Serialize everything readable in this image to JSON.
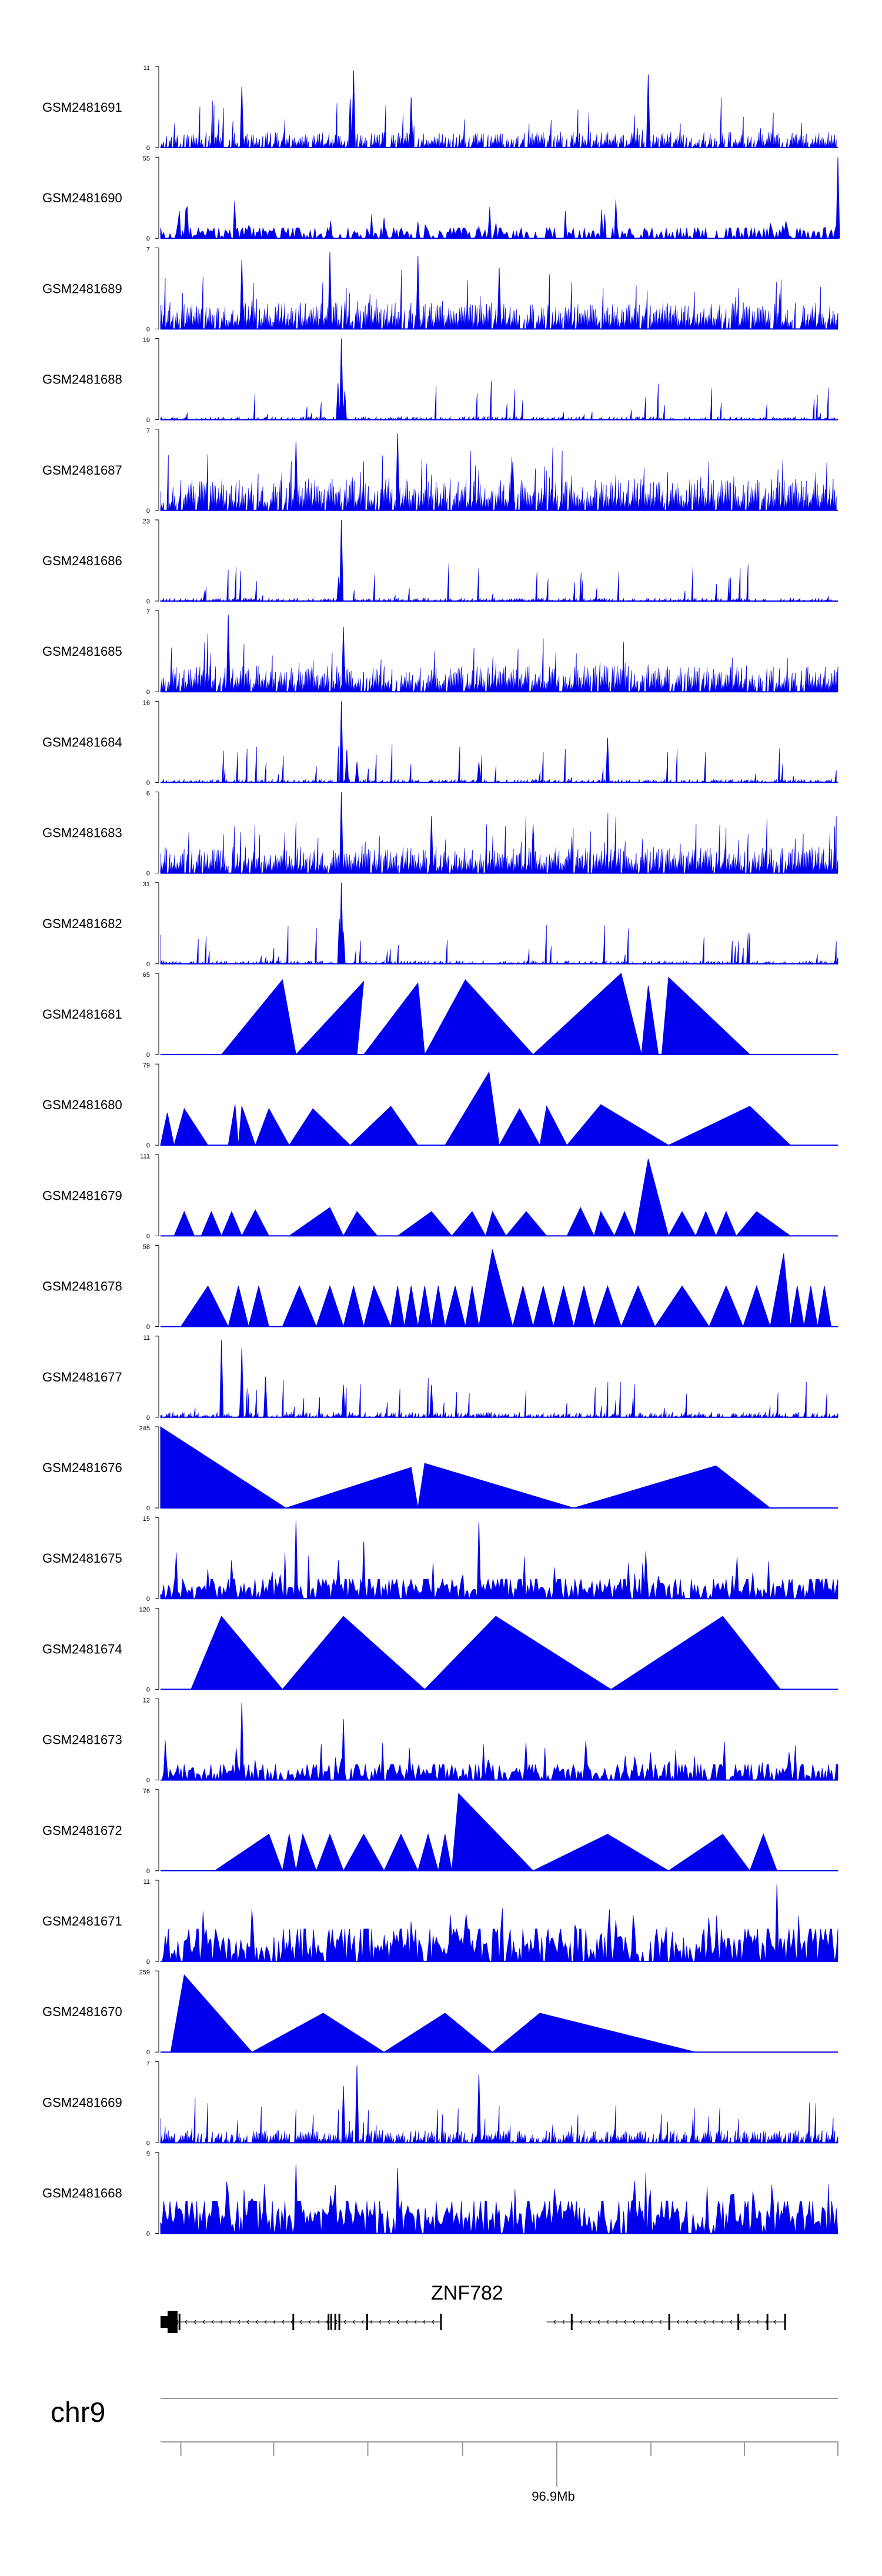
{
  "browser": {
    "chromosome": "chr9",
    "gene": {
      "name": "ZNF782",
      "strand": "-",
      "exons_group1": [
        0.0,
        0.028,
        0.196,
        0.248,
        0.252,
        0.258,
        0.264,
        0.305,
        0.414
      ],
      "exons_group2": [
        0.607,
        0.751,
        0.853,
        0.896,
        0.922
      ],
      "segments": [
        [
          0.0,
          0.414
        ],
        [
          0.57,
          0.922
        ]
      ]
    },
    "axis": {
      "major_tick_label": "96.9Mb",
      "major_tick_position": 0.585,
      "minor_ticks": [
        0.03,
        0.167,
        0.306,
        0.446,
        0.585,
        0.724,
        0.862,
        1.0
      ]
    }
  },
  "colors": {
    "signal": "#0000ee",
    "axis": "#000000",
    "ruler": "#9a9a9a"
  },
  "chart_data": {
    "type": "area",
    "x_axis": {
      "label": "96.9Mb",
      "domain": [
        0,
        1
      ]
    },
    "tracks": [
      {
        "name": "GSM2481691",
        "ymax": 11,
        "ymin": 0,
        "style": "dense",
        "seed": 11,
        "fill": 0.8,
        "base": 0.15,
        "peaks": [
          [
            0.12,
            0.75
          ],
          [
            0.285,
            0.95
          ],
          [
            0.28,
            0.6
          ],
          [
            0.37,
            0.62
          ],
          [
            0.72,
            0.9
          ]
        ]
      },
      {
        "name": "GSM2481690",
        "ymax": 55,
        "ymin": 0,
        "style": "dense-tri",
        "seed": 12,
        "fill": 0.5,
        "base": 0.08,
        "peaks": [
          [
            0.33,
            0.25
          ],
          [
            0.38,
            0.2
          ],
          [
            0.47,
            0.15
          ],
          [
            1.0,
            1.0
          ]
        ]
      },
      {
        "name": "GSM2481689",
        "ymax": 7,
        "ymin": 0,
        "style": "dense",
        "seed": 13,
        "fill": 0.9,
        "base": 0.25,
        "peaks": [
          [
            0.12,
            0.85
          ],
          [
            0.25,
            0.95
          ],
          [
            0.38,
            0.9
          ],
          [
            0.5,
            0.75
          ]
        ]
      },
      {
        "name": "GSM2481688",
        "ymax": 19,
        "ymin": 0,
        "style": "dense",
        "seed": 14,
        "fill": 0.6,
        "base": 0.03,
        "peaks": [
          [
            0.267,
            1.0
          ],
          [
            0.262,
            0.45
          ],
          [
            0.272,
            0.35
          ]
        ]
      },
      {
        "name": "GSM2481687",
        "ymax": 7,
        "ymin": 0,
        "style": "dense",
        "seed": 15,
        "fill": 0.9,
        "base": 0.3,
        "peaks": [
          [
            0.2,
            0.85
          ],
          [
            0.35,
            0.95
          ],
          [
            0.52,
            0.6
          ]
        ]
      },
      {
        "name": "GSM2481686",
        "ymax": 23,
        "ymin": 0,
        "style": "dense",
        "seed": 16,
        "fill": 0.6,
        "base": 0.03,
        "peaks": [
          [
            0.267,
            1.0
          ],
          [
            0.263,
            0.3
          ]
        ]
      },
      {
        "name": "GSM2481685",
        "ymax": 7,
        "ymin": 0,
        "style": "dense",
        "seed": 17,
        "fill": 0.9,
        "base": 0.25,
        "peaks": [
          [
            0.1,
            0.95
          ],
          [
            0.27,
            0.8
          ]
        ]
      },
      {
        "name": "GSM2481684",
        "ymax": 16,
        "ymin": 0,
        "style": "dense",
        "seed": 18,
        "fill": 0.65,
        "base": 0.03,
        "peaks": [
          [
            0.267,
            1.0
          ],
          [
            0.275,
            0.4
          ],
          [
            0.29,
            0.25
          ],
          [
            0.47,
            0.25
          ],
          [
            0.66,
            0.55
          ]
        ]
      },
      {
        "name": "GSM2481683",
        "ymax": 6,
        "ymin": 0,
        "style": "dense",
        "seed": 19,
        "fill": 0.9,
        "base": 0.25,
        "peaks": [
          [
            0.267,
            1.0
          ],
          [
            0.4,
            0.7
          ],
          [
            0.55,
            0.6
          ]
        ]
      },
      {
        "name": "GSM2481682",
        "ymax": 31,
        "ymin": 0,
        "style": "dense",
        "seed": 20,
        "fill": 0.6,
        "base": 0.03,
        "peaks": [
          [
            0.267,
            1.0
          ],
          [
            0.264,
            0.55
          ],
          [
            0.27,
            0.4
          ]
        ]
      },
      {
        "name": "GSM2481681",
        "ymax": 65,
        "ymin": 0,
        "style": "tri",
        "peaks": [
          [
            0.09,
            0.2,
            0.18
          ],
          [
            0.2,
            0.29,
            0.3
          ],
          [
            0.3,
            0.39,
            0.38
          ],
          [
            0.39,
            0.55,
            0.45
          ],
          [
            0.55,
            0.71,
            0.68
          ],
          [
            0.71,
            0.735,
            0.72
          ],
          [
            0.74,
            0.87,
            0.75
          ]
        ],
        "heights": [
          0.92,
          0.9,
          0.88,
          0.92,
          1.0,
          0.85,
          0.95
        ]
      },
      {
        "name": "GSM2481680",
        "ymax": 79,
        "ymin": 0,
        "style": "tri",
        "peaks": [
          [
            0.0,
            0.02,
            0.01
          ],
          [
            0.02,
            0.07,
            0.035
          ],
          [
            0.1,
            0.115,
            0.11
          ],
          [
            0.115,
            0.14,
            0.12
          ],
          [
            0.14,
            0.19,
            0.16
          ],
          [
            0.19,
            0.28,
            0.225
          ],
          [
            0.28,
            0.38,
            0.34
          ],
          [
            0.42,
            0.5,
            0.485
          ],
          [
            0.5,
            0.56,
            0.53
          ],
          [
            0.56,
            0.6,
            0.57
          ],
          [
            0.6,
            0.75,
            0.65
          ],
          [
            0.75,
            0.93,
            0.87
          ]
        ],
        "heights": [
          0.4,
          0.45,
          0.5,
          0.48,
          0.45,
          0.45,
          0.48,
          0.9,
          0.45,
          0.48,
          0.5,
          0.48
        ]
      },
      {
        "name": "GSM2481679",
        "ymax": 111,
        "ymin": 0,
        "style": "tri",
        "peaks": [
          [
            0.02,
            0.05,
            0.035
          ],
          [
            0.06,
            0.09,
            0.075
          ],
          [
            0.09,
            0.12,
            0.105
          ],
          [
            0.12,
            0.16,
            0.14
          ],
          [
            0.19,
            0.27,
            0.25
          ],
          [
            0.27,
            0.32,
            0.29
          ],
          [
            0.35,
            0.43,
            0.4
          ],
          [
            0.43,
            0.48,
            0.46
          ],
          [
            0.48,
            0.51,
            0.49
          ],
          [
            0.51,
            0.57,
            0.54
          ],
          [
            0.6,
            0.64,
            0.62
          ],
          [
            0.64,
            0.67,
            0.65
          ],
          [
            0.67,
            0.7,
            0.685
          ],
          [
            0.7,
            0.75,
            0.72
          ],
          [
            0.75,
            0.79,
            0.77
          ],
          [
            0.79,
            0.82,
            0.805
          ],
          [
            0.82,
            0.85,
            0.835
          ],
          [
            0.85,
            0.93,
            0.88
          ]
        ],
        "heights": [
          0.3,
          0.3,
          0.3,
          0.32,
          0.35,
          0.3,
          0.3,
          0.3,
          0.3,
          0.3,
          0.35,
          0.3,
          0.3,
          0.95,
          0.3,
          0.3,
          0.3,
          0.3
        ]
      },
      {
        "name": "GSM2481678",
        "ymax": 58,
        "ymin": 0,
        "style": "tri",
        "peaks": [
          [
            0.03,
            0.1,
            0.07
          ],
          [
            0.1,
            0.13,
            0.115
          ],
          [
            0.13,
            0.16,
            0.145
          ],
          [
            0.18,
            0.23,
            0.205
          ],
          [
            0.23,
            0.27,
            0.25
          ],
          [
            0.27,
            0.3,
            0.285
          ],
          [
            0.3,
            0.34,
            0.315
          ],
          [
            0.34,
            0.36,
            0.35
          ],
          [
            0.36,
            0.38,
            0.37
          ],
          [
            0.38,
            0.4,
            0.39
          ],
          [
            0.4,
            0.42,
            0.41
          ],
          [
            0.42,
            0.45,
            0.435
          ],
          [
            0.45,
            0.47,
            0.46
          ],
          [
            0.47,
            0.52,
            0.49
          ],
          [
            0.52,
            0.55,
            0.535
          ],
          [
            0.55,
            0.58,
            0.565
          ],
          [
            0.58,
            0.61,
            0.595
          ],
          [
            0.61,
            0.64,
            0.625
          ],
          [
            0.64,
            0.68,
            0.66
          ],
          [
            0.68,
            0.73,
            0.705
          ],
          [
            0.73,
            0.81,
            0.77
          ],
          [
            0.81,
            0.86,
            0.835
          ],
          [
            0.86,
            0.9,
            0.88
          ],
          [
            0.9,
            0.93,
            0.92
          ],
          [
            0.93,
            0.95,
            0.94
          ],
          [
            0.95,
            0.97,
            0.96
          ],
          [
            0.97,
            0.99,
            0.98
          ]
        ],
        "heights": [
          0.5,
          0.5,
          0.5,
          0.5,
          0.5,
          0.5,
          0.5,
          0.5,
          0.5,
          0.5,
          0.5,
          0.5,
          0.5,
          0.95,
          0.5,
          0.5,
          0.5,
          0.5,
          0.5,
          0.5,
          0.5,
          0.5,
          0.5,
          0.9,
          0.5,
          0.5,
          0.5
        ]
      },
      {
        "name": "GSM2481677",
        "ymax": 11,
        "ymin": 0,
        "style": "dense",
        "seed": 21,
        "fill": 0.7,
        "base": 0.05,
        "peaks": [
          [
            0.09,
            0.95
          ],
          [
            0.12,
            0.85
          ],
          [
            0.155,
            0.5
          ],
          [
            0.27,
            0.4
          ],
          [
            0.4,
            0.4
          ]
        ]
      },
      {
        "name": "GSM2481676",
        "ymax": 245,
        "ymin": 0,
        "style": "tri",
        "peaks": [
          [
            0.0,
            0.185,
            0.0
          ],
          [
            0.185,
            0.38,
            0.37
          ],
          [
            0.38,
            0.61,
            0.39
          ],
          [
            0.61,
            0.9,
            0.82
          ]
        ],
        "heights": [
          1.0,
          0.5,
          0.55,
          0.52
        ]
      },
      {
        "name": "GSM2481675",
        "ymax": 15,
        "ymin": 0,
        "style": "dense-tri",
        "seed": 22,
        "fill": 0.8,
        "base": 0.15,
        "peaks": [
          [
            0.2,
            0.95
          ],
          [
            0.47,
            0.95
          ],
          [
            0.3,
            0.7
          ]
        ]
      },
      {
        "name": "GSM2481674",
        "ymax": 120,
        "ymin": 0,
        "style": "tri",
        "peaks": [
          [
            0.045,
            0.18,
            0.09
          ],
          [
            0.18,
            0.39,
            0.27
          ],
          [
            0.39,
            0.665,
            0.495
          ],
          [
            0.665,
            0.915,
            0.83
          ]
        ],
        "heights": [
          0.9,
          0.9,
          0.9,
          0.9
        ]
      },
      {
        "name": "GSM2481673",
        "ymax": 12,
        "ymin": 0,
        "style": "dense-tri",
        "seed": 23,
        "fill": 0.65,
        "base": 0.12,
        "peaks": [
          [
            0.12,
            0.95
          ],
          [
            0.27,
            0.75
          ]
        ]
      },
      {
        "name": "GSM2481672",
        "ymax": 76,
        "ymin": 0,
        "style": "tri",
        "peaks": [
          [
            0.08,
            0.18,
            0.16
          ],
          [
            0.18,
            0.2,
            0.19
          ],
          [
            0.2,
            0.23,
            0.21
          ],
          [
            0.23,
            0.27,
            0.25
          ],
          [
            0.27,
            0.33,
            0.3
          ],
          [
            0.33,
            0.38,
            0.355
          ],
          [
            0.38,
            0.41,
            0.395
          ],
          [
            0.41,
            0.43,
            0.42
          ],
          [
            0.43,
            0.55,
            0.44
          ],
          [
            0.55,
            0.75,
            0.66
          ],
          [
            0.75,
            0.87,
            0.83
          ],
          [
            0.87,
            0.91,
            0.89
          ]
        ],
        "heights": [
          0.45,
          0.45,
          0.45,
          0.45,
          0.45,
          0.45,
          0.45,
          0.45,
          0.95,
          0.45,
          0.45,
          0.45
        ]
      },
      {
        "name": "GSM2481671",
        "ymax": 11,
        "ymin": 0,
        "style": "dense-tri",
        "seed": 24,
        "fill": 0.75,
        "base": 0.25,
        "peaks": [
          [
            0.91,
            0.95
          ]
        ]
      },
      {
        "name": "GSM2481670",
        "ymax": 259,
        "ymin": 0,
        "style": "tri",
        "peaks": [
          [
            0.015,
            0.135,
            0.035
          ],
          [
            0.135,
            0.33,
            0.24
          ],
          [
            0.33,
            0.49,
            0.42
          ],
          [
            0.49,
            0.79,
            0.56
          ]
        ],
        "heights": [
          0.95,
          0.48,
          0.48,
          0.48
        ]
      },
      {
        "name": "GSM2481669",
        "ymax": 7,
        "ymin": 0,
        "style": "dense",
        "seed": 25,
        "fill": 0.8,
        "base": 0.12,
        "peaks": [
          [
            0.29,
            0.95
          ],
          [
            0.47,
            0.85
          ],
          [
            0.27,
            0.7
          ]
        ]
      },
      {
        "name": "GSM2481668",
        "ymax": 9,
        "ymin": 0,
        "style": "dense-tri",
        "seed": 26,
        "fill": 0.8,
        "base": 0.25,
        "peaks": [
          [
            0.2,
            0.85
          ],
          [
            0.35,
            0.8
          ]
        ]
      }
    ]
  }
}
